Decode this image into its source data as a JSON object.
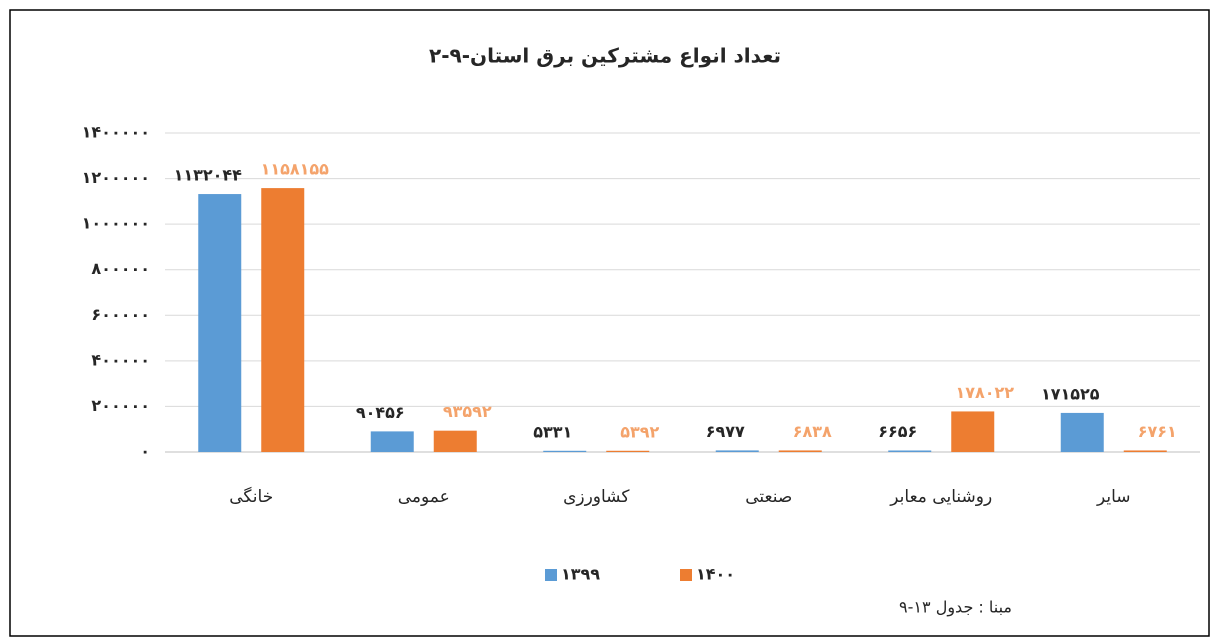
{
  "chart_data": {
    "type": "bar",
    "title": "۲-۹-تعداد انواع مشترکین برق استان",
    "categories": [
      "خانگی",
      "عمومی",
      "کشاورزی",
      "صنعتی",
      "روشنایی معابر",
      "سایر"
    ],
    "series": [
      {
        "name": "۱۳۹۹",
        "color": "#5b9bd5",
        "label_color": "#262626",
        "values": [
          1132044,
          90456,
          5331,
          6977,
          6656,
          171525
        ],
        "value_labels": [
          "۱۱۳۲۰۴۴",
          "۹۰۴۵۶",
          "۵۳۳۱",
          "۶۹۷۷",
          "۶۶۵۶",
          "۱۷۱۵۲۵"
        ]
      },
      {
        "name": "۱۴۰۰",
        "color": "#ed7d31",
        "label_color": "#f4a36b",
        "values": [
          1158155,
          93592,
          5392,
          6838,
          178022,
          6761
        ],
        "value_labels": [
          "۱۱۵۸۱۵۵",
          "۹۳۵۹۲",
          "۵۳۹۲",
          "۶۸۳۸",
          "۱۷۸۰۲۲",
          "۶۷۶۱"
        ]
      }
    ],
    "ylim": [
      0,
      1400000
    ],
    "yticks": [
      {
        "value": 0,
        "label": "۰"
      },
      {
        "value": 200000,
        "label": "۲۰۰۰۰۰"
      },
      {
        "value": 400000,
        "label": "۴۰۰۰۰۰"
      },
      {
        "value": 600000,
        "label": "۶۰۰۰۰۰"
      },
      {
        "value": 800000,
        "label": "۸۰۰۰۰۰"
      },
      {
        "value": 1000000,
        "label": "۱۰۰۰۰۰۰"
      },
      {
        "value": 1200000,
        "label": "۱۲۰۰۰۰۰"
      },
      {
        "value": 1400000,
        "label": "۱۴۰۰۰۰۰"
      }
    ],
    "grid": true,
    "legend": "bottom",
    "note": "مبنا : جدول ۱۳-۹"
  }
}
